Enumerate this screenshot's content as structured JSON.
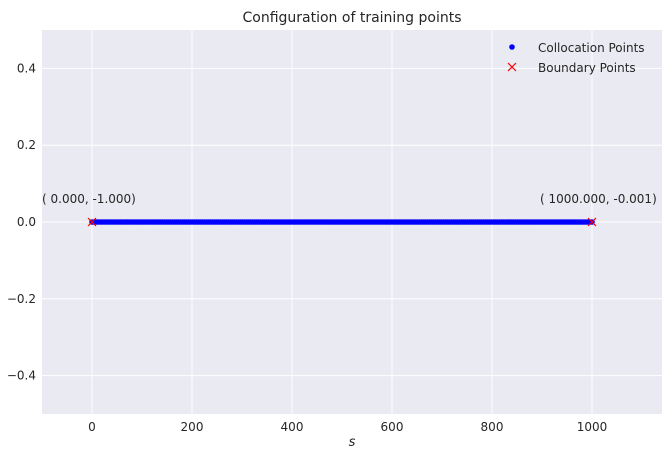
{
  "chart_data": {
    "type": "scatter",
    "title": "Configuration of training points",
    "xlabel": "s",
    "ylabel": "",
    "xlim": [
      -100,
      1140
    ],
    "ylim": [
      -0.5,
      0.5
    ],
    "x_ticks": [
      0,
      200,
      400,
      600,
      800,
      1000
    ],
    "y_ticks": [
      -0.4,
      -0.2,
      0.0,
      0.2,
      0.4
    ],
    "x_tick_labels": [
      "0",
      "200",
      "400",
      "600",
      "800",
      "1000"
    ],
    "y_tick_labels": [
      "−0.4",
      "−0.2",
      "0.0",
      "0.2",
      "0.4"
    ],
    "grid": true,
    "legend_position": "top-right",
    "series": [
      {
        "name": "Collocation Points",
        "marker": "dot",
        "color": "#0000ff",
        "x_range": [
          0,
          1000
        ],
        "y": 0.0,
        "count": 250
      },
      {
        "name": "Boundary Points",
        "marker": "x",
        "color": "#ff0000",
        "x": [
          0,
          1000
        ],
        "y": [
          0.0,
          0.0
        ]
      }
    ],
    "annotations": [
      {
        "text": "( 0.000, -1.000)",
        "x": 0,
        "y": 0.0
      },
      {
        "text": "( 1000.000, -0.001)",
        "x": 1000,
        "y": 0.0
      }
    ],
    "colors": {
      "plot_background": "#eaeaf2",
      "grid": "#ffffff",
      "collocation": "#0000ff",
      "boundary": "#ff0000"
    }
  }
}
